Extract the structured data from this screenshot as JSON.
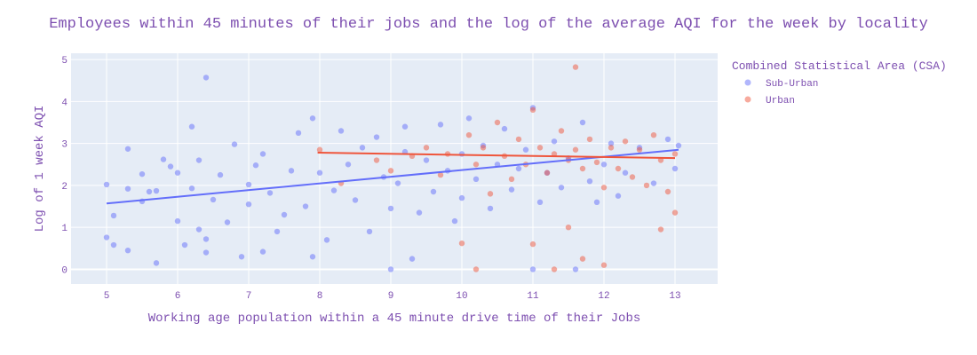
{
  "chart_data": {
    "type": "scatter",
    "title": "Employees within 45 minutes of their jobs and the log of the average AQI for the week by locality",
    "xlabel": "Working age population within a 45 minute drive time of their Jobs",
    "ylabel": "Log of 1 week AQI",
    "xlim": [
      4.5,
      13.6
    ],
    "ylim": [
      -0.35,
      5.15
    ],
    "x_ticks": [
      5,
      6,
      7,
      8,
      9,
      10,
      11,
      12,
      13
    ],
    "y_ticks": [
      0,
      1,
      2,
      3,
      4,
      5
    ],
    "grid": true,
    "legend": {
      "title": "Combined Statistical Area (CSA)",
      "placement": "right"
    },
    "series": [
      {
        "name": "Sub-Urban",
        "color": "#636efa",
        "trendline": {
          "x": [
            5.0,
            13.05
          ],
          "y": [
            1.57,
            2.85
          ]
        },
        "points": [
          [
            5.0,
            2.02
          ],
          [
            5.0,
            0.76
          ],
          [
            5.1,
            1.28
          ],
          [
            5.1,
            0.58
          ],
          [
            5.3,
            0.45
          ],
          [
            5.3,
            1.92
          ],
          [
            5.3,
            2.87
          ],
          [
            5.5,
            1.62
          ],
          [
            5.5,
            2.27
          ],
          [
            5.6,
            1.85
          ],
          [
            5.7,
            0.15
          ],
          [
            5.7,
            1.87
          ],
          [
            5.8,
            2.62
          ],
          [
            5.9,
            2.45
          ],
          [
            6.0,
            1.15
          ],
          [
            6.0,
            2.3
          ],
          [
            6.1,
            0.58
          ],
          [
            6.2,
            1.93
          ],
          [
            6.2,
            3.4
          ],
          [
            6.3,
            0.95
          ],
          [
            6.3,
            2.6
          ],
          [
            6.4,
            4.57
          ],
          [
            6.4,
            0.72
          ],
          [
            6.4,
            0.4
          ],
          [
            6.5,
            1.66
          ],
          [
            6.6,
            2.25
          ],
          [
            6.7,
            1.12
          ],
          [
            6.8,
            2.98
          ],
          [
            6.9,
            0.3
          ],
          [
            7.0,
            1.55
          ],
          [
            7.0,
            2.02
          ],
          [
            7.1,
            2.48
          ],
          [
            7.2,
            0.42
          ],
          [
            7.2,
            2.75
          ],
          [
            7.3,
            1.82
          ],
          [
            7.4,
            0.9
          ],
          [
            7.5,
            1.3
          ],
          [
            7.6,
            2.35
          ],
          [
            7.7,
            3.25
          ],
          [
            7.8,
            1.5
          ],
          [
            7.9,
            3.6
          ],
          [
            7.9,
            0.3
          ],
          [
            8.0,
            2.3
          ],
          [
            8.1,
            0.7
          ],
          [
            8.2,
            1.88
          ],
          [
            8.3,
            3.3
          ],
          [
            8.4,
            2.5
          ],
          [
            8.5,
            1.65
          ],
          [
            8.6,
            2.9
          ],
          [
            8.7,
            0.9
          ],
          [
            8.8,
            3.15
          ],
          [
            8.9,
            2.2
          ],
          [
            9.0,
            0.0
          ],
          [
            9.0,
            1.45
          ],
          [
            9.1,
            2.05
          ],
          [
            9.2,
            2.8
          ],
          [
            9.2,
            3.4
          ],
          [
            9.3,
            0.25
          ],
          [
            9.4,
            1.35
          ],
          [
            9.5,
            2.6
          ],
          [
            9.6,
            1.85
          ],
          [
            9.7,
            3.45
          ],
          [
            9.8,
            2.35
          ],
          [
            9.9,
            1.15
          ],
          [
            10.0,
            2.75
          ],
          [
            10.0,
            1.7
          ],
          [
            10.1,
            3.6
          ],
          [
            10.2,
            2.15
          ],
          [
            10.3,
            2.95
          ],
          [
            10.4,
            1.45
          ],
          [
            10.5,
            2.5
          ],
          [
            10.6,
            3.35
          ],
          [
            10.7,
            1.9
          ],
          [
            10.8,
            2.4
          ],
          [
            10.9,
            2.85
          ],
          [
            11.0,
            0.0
          ],
          [
            11.0,
            3.85
          ],
          [
            11.1,
            1.6
          ],
          [
            11.2,
            2.3
          ],
          [
            11.3,
            3.05
          ],
          [
            11.4,
            1.95
          ],
          [
            11.5,
            2.65
          ],
          [
            11.6,
            0.0
          ],
          [
            11.7,
            3.5
          ],
          [
            11.8,
            2.1
          ],
          [
            11.9,
            1.6
          ],
          [
            12.0,
            2.5
          ],
          [
            12.1,
            3.0
          ],
          [
            12.2,
            1.75
          ],
          [
            12.3,
            2.3
          ],
          [
            12.5,
            2.9
          ],
          [
            12.7,
            2.05
          ],
          [
            12.9,
            3.1
          ],
          [
            13.0,
            2.4
          ],
          [
            13.05,
            2.95
          ]
        ]
      },
      {
        "name": "Urban",
        "color": "#ef553b",
        "trendline": {
          "x": [
            7.97,
            13.0
          ],
          "y": [
            2.78,
            2.65
          ]
        },
        "points": [
          [
            8.0,
            2.85
          ],
          [
            8.3,
            2.05
          ],
          [
            8.8,
            2.6
          ],
          [
            9.0,
            2.35
          ],
          [
            9.3,
            2.7
          ],
          [
            9.5,
            2.9
          ],
          [
            9.7,
            2.25
          ],
          [
            9.8,
            2.75
          ],
          [
            10.0,
            0.62
          ],
          [
            10.1,
            3.2
          ],
          [
            10.2,
            2.5
          ],
          [
            10.2,
            0.0
          ],
          [
            10.3,
            2.9
          ],
          [
            10.4,
            1.8
          ],
          [
            10.5,
            3.5
          ],
          [
            10.6,
            2.7
          ],
          [
            10.7,
            2.15
          ],
          [
            10.8,
            3.1
          ],
          [
            10.9,
            2.5
          ],
          [
            11.0,
            0.6
          ],
          [
            11.0,
            3.8
          ],
          [
            11.1,
            2.9
          ],
          [
            11.2,
            2.3
          ],
          [
            11.3,
            2.75
          ],
          [
            11.3,
            0.0
          ],
          [
            11.4,
            3.3
          ],
          [
            11.5,
            2.6
          ],
          [
            11.5,
            1.0
          ],
          [
            11.6,
            2.85
          ],
          [
            11.6,
            4.82
          ],
          [
            11.7,
            2.4
          ],
          [
            11.7,
            0.25
          ],
          [
            11.8,
            3.1
          ],
          [
            11.9,
            2.55
          ],
          [
            12.0,
            1.95
          ],
          [
            12.0,
            0.1
          ],
          [
            12.1,
            2.9
          ],
          [
            12.2,
            2.4
          ],
          [
            12.3,
            3.05
          ],
          [
            12.4,
            2.2
          ],
          [
            12.5,
            2.85
          ],
          [
            12.6,
            2.0
          ],
          [
            12.7,
            3.2
          ],
          [
            12.8,
            2.6
          ],
          [
            12.8,
            0.95
          ],
          [
            12.9,
            1.85
          ],
          [
            13.0,
            2.75
          ],
          [
            13.0,
            1.35
          ]
        ]
      }
    ]
  }
}
